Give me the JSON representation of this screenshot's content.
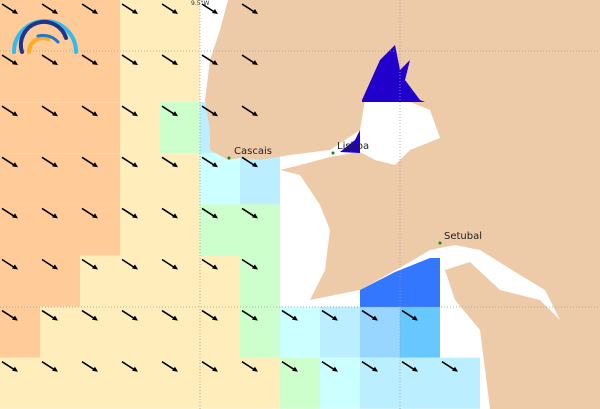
{
  "colors": {
    "O": "#ffcc99",
    "Y": "#ffeebb",
    "G": "#ccffcc",
    "C": "#ccffff",
    "L": "#bbeeff",
    "M": "#99d6ff",
    "S": "#66c8ff",
    "B": "#3377ff",
    "D": "#2200cc",
    "W": "#ffffff",
    "land": "#eecba8"
  },
  "grid": [
    "OOOYYWWWWWWWWWW",
    "OOOYYWWWWWWWWWW",
    "OOOYGLWWWWWWWWW",
    "OOOYYCLWWWWWWWW",
    "OOOYYGGWWWWWWWW",
    "OOYYYYGWWWWWWWW",
    "OYYYYYGCLMSWWWW",
    "YYYYYYYGCLLLWWW"
  ],
  "places": [
    {
      "name": "Cascais"
    },
    {
      "name": "Lisboa"
    },
    {
      "name": "Setubal"
    }
  ],
  "tick_label": "9.5°W",
  "logo": "arc-logo-icon"
}
